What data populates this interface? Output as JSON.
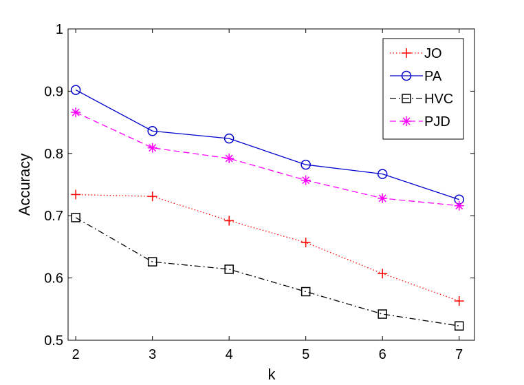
{
  "chart_data": {
    "type": "line",
    "title": "",
    "xlabel": "k",
    "ylabel": "Accuracy",
    "x": [
      2,
      3,
      4,
      5,
      6,
      7
    ],
    "xlim": [
      1.9,
      7.2
    ],
    "ylim": [
      0.5,
      1.0
    ],
    "xticks": [
      "2",
      "3",
      "4",
      "5",
      "6",
      "7"
    ],
    "yticks": [
      "0.5",
      "0.6",
      "0.7",
      "0.8",
      "0.9",
      "1"
    ],
    "grid": false,
    "legend_position": "top-right",
    "series": [
      {
        "name": "JO",
        "color": "#ff0000",
        "line_style": "dotted",
        "marker": "plus",
        "values": [
          0.734,
          0.731,
          0.692,
          0.657,
          0.607,
          0.563
        ]
      },
      {
        "name": "PA",
        "color": "#0000cc",
        "line_style": "solid",
        "marker": "circle",
        "values": [
          0.902,
          0.836,
          0.824,
          0.782,
          0.767,
          0.726
        ]
      },
      {
        "name": "HVC",
        "color": "#000000",
        "line_style": "dashdot",
        "marker": "square",
        "values": [
          0.697,
          0.626,
          0.614,
          0.578,
          0.542,
          0.523
        ]
      },
      {
        "name": "PJD",
        "color": "#ff00ff",
        "line_style": "dashed",
        "marker": "star",
        "values": [
          0.866,
          0.809,
          0.792,
          0.757,
          0.728,
          0.716
        ]
      }
    ]
  }
}
